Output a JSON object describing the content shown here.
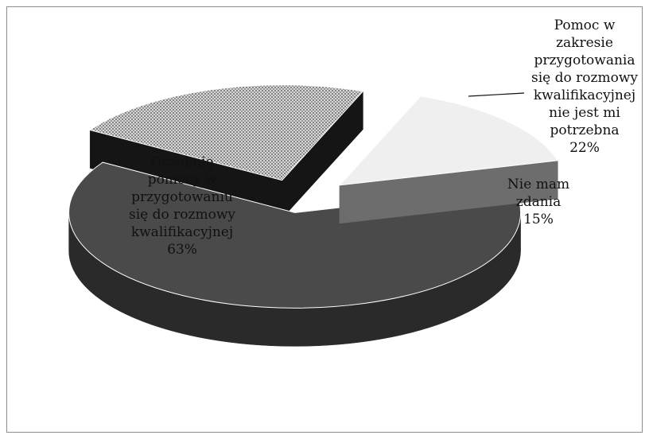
{
  "chart_data": {
    "type": "pie",
    "style": "3d-exploded",
    "legend": "none",
    "slices": [
      {
        "category": "Oczekuję pomocy w przygotowaniu się do rozmowy kwalifikacyjnej",
        "value": 63,
        "value_label": "63%",
        "color": "#4a4a4a",
        "side_color": "#2a2a2a",
        "pattern": "solid",
        "label_lines": [
          "Oczekuję",
          "pomocy w",
          "przygotowaniu",
          "się do rozmowy",
          "kwalifikacyjnej",
          "63%"
        ]
      },
      {
        "category": "Pomoc w zakresie przygotowania się do rozmowy kwalifikacyjnej nie jest mi potrzebna",
        "value": 22,
        "value_label": "22%",
        "color": "#b9b9b9",
        "side_color": "#151515",
        "pattern": "dotted",
        "label_lines": [
          "Pomoc w",
          "zakresie",
          "przygotowania",
          "się do rozmowy",
          "kwalifikacyjnej",
          "nie jest mi",
          "potrzebna",
          "22%"
        ]
      },
      {
        "category": "Nie mam zdania",
        "value": 15,
        "value_label": "15%",
        "color": "#efefef",
        "side_color": "#6d6d6d",
        "pattern": "solid",
        "label_lines": [
          "Nie mam",
          "zdania",
          "15%"
        ]
      }
    ]
  }
}
